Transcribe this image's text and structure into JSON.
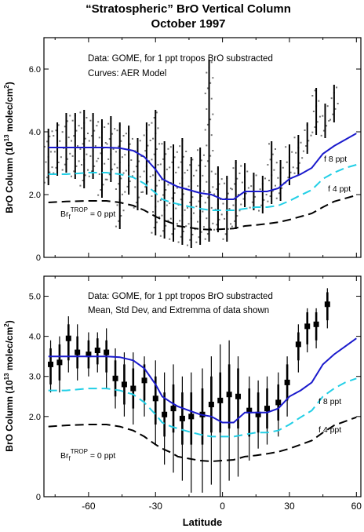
{
  "figure": {
    "title_line1": "“Stratospheric” BrO Vertical Column",
    "title_line2": "October 1997",
    "xlabel": "Latitude"
  },
  "colors": {
    "f8": "#1a1acc",
    "f4": "#22cfe6",
    "f0": "#000000",
    "data": "#000000"
  },
  "chart_data": [
    {
      "type": "scatter",
      "panel": "top",
      "title": "“Stratospheric” BrO Vertical Column October 1997",
      "xlabel": "",
      "ylabel": "BrO Column (10^13 molec/cm^2)",
      "ylabel_main": "BrO Column (10",
      "ylabel_sup": "13",
      "ylabel_tail": " molec/cm",
      "ylabel_sup2": "2",
      "ylabel_end": ")",
      "xlim": [
        -80,
        62
      ],
      "ylim": [
        0,
        7
      ],
      "yticks": [
        0,
        2.0,
        4.0,
        6.0
      ],
      "ytick_labels": [
        "0",
        "2.0",
        "4.0",
        "6.0"
      ],
      "annotations": [
        "Data: GOME, for 1 ppt tropos BrO substracted",
        "Curves: AER Model"
      ],
      "curve_labels": {
        "f8": "f 8 ppt",
        "f4": "f 4 ppt",
        "f0_main": "Br",
        "f0_sub": "f",
        "f0_sup": "TROP",
        "f0_tail": " = 0 ppt"
      },
      "series": [
        {
          "name": "f 8 ppt",
          "style": "solid",
          "x": [
            -78,
            -70,
            -60,
            -52,
            -46,
            -40,
            -35,
            -30,
            -27,
            -23,
            -20,
            -15,
            -10,
            -5,
            0,
            5,
            10,
            15,
            20,
            25,
            30,
            35,
            40,
            45,
            50,
            55,
            60
          ],
          "y": [
            3.5,
            3.5,
            3.5,
            3.5,
            3.48,
            3.4,
            3.2,
            2.8,
            2.5,
            2.35,
            2.25,
            2.15,
            2.05,
            2.0,
            1.85,
            1.85,
            2.1,
            2.1,
            2.1,
            2.2,
            2.5,
            2.65,
            2.85,
            3.3,
            3.55,
            3.75,
            3.95
          ]
        },
        {
          "name": "f 4 ppt",
          "style": "dashed",
          "x": [
            -78,
            -70,
            -60,
            -52,
            -46,
            -40,
            -35,
            -30,
            -27,
            -23,
            -20,
            -15,
            -10,
            -5,
            0,
            5,
            10,
            15,
            20,
            25,
            30,
            35,
            40,
            45,
            50,
            55,
            60
          ],
          "y": [
            2.65,
            2.65,
            2.7,
            2.7,
            2.65,
            2.55,
            2.35,
            2.05,
            1.85,
            1.75,
            1.7,
            1.62,
            1.55,
            1.5,
            1.5,
            1.5,
            1.55,
            1.6,
            1.6,
            1.65,
            1.8,
            1.98,
            2.15,
            2.5,
            2.7,
            2.85,
            2.95
          ]
        },
        {
          "name": "Br_f^TROP = 0 ppt",
          "style": "dashed",
          "x": [
            -78,
            -70,
            -60,
            -52,
            -46,
            -40,
            -35,
            -30,
            -27,
            -23,
            -20,
            -15,
            -10,
            -5,
            0,
            5,
            10,
            15,
            20,
            25,
            30,
            35,
            40,
            45,
            50,
            55,
            60
          ],
          "y": [
            1.75,
            1.78,
            1.8,
            1.8,
            1.75,
            1.65,
            1.5,
            1.3,
            1.2,
            1.1,
            1.0,
            0.95,
            0.9,
            0.88,
            0.9,
            0.92,
            1.0,
            1.03,
            1.07,
            1.12,
            1.2,
            1.3,
            1.4,
            1.6,
            1.78,
            1.88,
            1.98
          ]
        }
      ],
      "data_bars": [
        {
          "x": -78,
          "lo": 2.3,
          "hi": 4.1
        },
        {
          "x": -74,
          "lo": 2.6,
          "hi": 4.3
        },
        {
          "x": -70,
          "lo": 2.7,
          "hi": 4.6
        },
        {
          "x": -66,
          "lo": 2.5,
          "hi": 4.6
        },
        {
          "x": -62,
          "lo": 2.2,
          "hi": 4.7
        },
        {
          "x": -58,
          "lo": 2.5,
          "hi": 4.6
        },
        {
          "x": -54,
          "lo": 1.9,
          "hi": 4.4
        },
        {
          "x": -50,
          "lo": 2.4,
          "hi": 4.5
        },
        {
          "x": -46,
          "lo": 0.9,
          "hi": 4.3
        },
        {
          "x": -42,
          "lo": 2.0,
          "hi": 4.2
        },
        {
          "x": -38,
          "lo": 1.5,
          "hi": 3.8
        },
        {
          "x": -34,
          "lo": 2.0,
          "hi": 4.3
        },
        {
          "x": -30,
          "lo": 0.7,
          "hi": 4.7
        },
        {
          "x": -26,
          "lo": 0.6,
          "hi": 3.7
        },
        {
          "x": -22,
          "lo": 0.5,
          "hi": 3.6
        },
        {
          "x": -18,
          "lo": 0.4,
          "hi": 3.8
        },
        {
          "x": -14,
          "lo": 0.3,
          "hi": 3.2
        },
        {
          "x": -10,
          "lo": 0.4,
          "hi": 3.5
        },
        {
          "x": -6,
          "lo": 0.5,
          "hi": 6.3
        },
        {
          "x": -2,
          "lo": 0.8,
          "hi": 2.9
        },
        {
          "x": 2,
          "lo": 0.5,
          "hi": 2.6
        },
        {
          "x": 6,
          "lo": 0.9,
          "hi": 3.1
        },
        {
          "x": 10,
          "lo": 1.6,
          "hi": 3.0
        },
        {
          "x": 14,
          "lo": 1.5,
          "hi": 2.7
        },
        {
          "x": 18,
          "lo": 1.4,
          "hi": 2.6
        },
        {
          "x": 22,
          "lo": 1.7,
          "hi": 3.7
        },
        {
          "x": 26,
          "lo": 1.8,
          "hi": 3.1
        },
        {
          "x": 30,
          "lo": 2.3,
          "hi": 3.6
        },
        {
          "x": 34,
          "lo": 2.6,
          "hi": 3.9
        },
        {
          "x": 38,
          "lo": 3.3,
          "hi": 4.3
        },
        {
          "x": 42,
          "lo": 3.9,
          "hi": 5.4
        },
        {
          "x": 46,
          "lo": 3.8,
          "hi": 4.9
        },
        {
          "x": 50,
          "lo": 4.3,
          "hi": 5.5
        }
      ]
    },
    {
      "type": "scatter",
      "panel": "bottom",
      "xlabel": "Latitude",
      "ylabel": "BrO Column (10^13 molec/cm^2)",
      "ylabel_main": "BrO Column (10",
      "ylabel_sup": "13",
      "ylabel_tail": " molec/cm",
      "ylabel_sup2": "2",
      "ylabel_end": ")",
      "xlim": [
        -80,
        62
      ],
      "ylim": [
        0,
        5.5
      ],
      "yticks": [
        0,
        2.0,
        3.0,
        4.0,
        5.0
      ],
      "ytick_labels": [
        "0",
        "2.0",
        "3.0",
        "4.0",
        "5.0"
      ],
      "xticks": [
        -60,
        -30,
        0,
        30,
        60
      ],
      "xtick_labels": [
        "-60",
        "-30",
        "0",
        "30",
        "60"
      ],
      "annotations": [
        "Data: GOME, for 1 ppt tropos BrO substracted",
        "Mean, Std Dev, and Extremma of data shown"
      ],
      "curve_labels": {
        "f8": "f 8 ppt",
        "f4": "f 4 ppt",
        "f0_main": "Br",
        "f0_sub": "f",
        "f0_sup": "TROP",
        "f0_tail": " = 0 ppt"
      },
      "series": [
        {
          "name": "f 8 ppt",
          "style": "solid",
          "x": [
            -78,
            -70,
            -60,
            -52,
            -46,
            -40,
            -35,
            -30,
            -27,
            -23,
            -20,
            -15,
            -10,
            -5,
            0,
            5,
            10,
            15,
            20,
            25,
            30,
            35,
            40,
            45,
            50,
            55,
            60
          ],
          "y": [
            3.5,
            3.5,
            3.5,
            3.5,
            3.48,
            3.4,
            3.2,
            2.8,
            2.5,
            2.35,
            2.25,
            2.15,
            2.05,
            2.0,
            1.85,
            1.85,
            2.1,
            2.1,
            2.1,
            2.2,
            2.5,
            2.65,
            2.85,
            3.3,
            3.55,
            3.75,
            3.95
          ]
        },
        {
          "name": "f 4 ppt",
          "style": "dashed",
          "x": [
            -78,
            -70,
            -60,
            -52,
            -46,
            -40,
            -35,
            -30,
            -27,
            -23,
            -20,
            -15,
            -10,
            -5,
            0,
            5,
            10,
            15,
            20,
            25,
            30,
            35,
            40,
            45,
            50,
            55,
            60
          ],
          "y": [
            2.65,
            2.65,
            2.7,
            2.7,
            2.65,
            2.55,
            2.35,
            2.05,
            1.85,
            1.75,
            1.7,
            1.62,
            1.55,
            1.5,
            1.5,
            1.5,
            1.55,
            1.6,
            1.6,
            1.65,
            1.8,
            1.98,
            2.15,
            2.5,
            2.7,
            2.85,
            2.95
          ]
        },
        {
          "name": "Br_f^TROP = 0 ppt",
          "style": "dashed",
          "x": [
            -78,
            -70,
            -60,
            -52,
            -46,
            -40,
            -35,
            -30,
            -27,
            -23,
            -20,
            -15,
            -10,
            -5,
            0,
            5,
            10,
            15,
            20,
            25,
            30,
            35,
            40,
            45,
            50,
            55,
            60
          ],
          "y": [
            1.75,
            1.78,
            1.8,
            1.8,
            1.75,
            1.65,
            1.5,
            1.3,
            1.2,
            1.1,
            1.0,
            0.95,
            0.9,
            0.88,
            0.9,
            0.92,
            1.0,
            1.03,
            1.07,
            1.12,
            1.2,
            1.3,
            1.4,
            1.6,
            1.78,
            1.88,
            1.98
          ]
        }
      ],
      "points": [
        {
          "x": -77,
          "mean": 3.3,
          "sd_lo": 2.8,
          "sd_hi": 3.7,
          "min": 2.6,
          "max": 3.9
        },
        {
          "x": -73,
          "mean": 3.35,
          "sd_lo": 2.9,
          "sd_hi": 3.8,
          "min": 2.6,
          "max": 4.0
        },
        {
          "x": -69,
          "mean": 3.95,
          "sd_lo": 3.4,
          "sd_hi": 4.3,
          "min": 3.1,
          "max": 4.5
        },
        {
          "x": -65,
          "mean": 3.6,
          "sd_lo": 3.2,
          "sd_hi": 4.0,
          "min": 2.9,
          "max": 4.3
        },
        {
          "x": -60,
          "mean": 3.55,
          "sd_lo": 3.2,
          "sd_hi": 3.9,
          "min": 3.0,
          "max": 4.1
        },
        {
          "x": -56,
          "mean": 3.65,
          "sd_lo": 3.3,
          "sd_hi": 3.95,
          "min": 3.1,
          "max": 4.1
        },
        {
          "x": -52,
          "mean": 3.6,
          "sd_lo": 3.1,
          "sd_hi": 3.9,
          "min": 2.7,
          "max": 4.2
        },
        {
          "x": -48,
          "mean": 2.95,
          "sd_lo": 2.5,
          "sd_hi": 3.4,
          "min": 2.2,
          "max": 3.7
        },
        {
          "x": -44,
          "mean": 2.8,
          "sd_lo": 2.3,
          "sd_hi": 3.3,
          "min": 2.0,
          "max": 3.6
        },
        {
          "x": -40,
          "mean": 2.7,
          "sd_lo": 2.2,
          "sd_hi": 3.2,
          "min": 1.8,
          "max": 3.6
        },
        {
          "x": -35,
          "mean": 2.9,
          "sd_lo": 2.4,
          "sd_hi": 3.3,
          "min": 2.0,
          "max": 3.5
        },
        {
          "x": -30,
          "mean": 2.45,
          "sd_lo": 1.8,
          "sd_hi": 3.0,
          "min": 1.3,
          "max": 3.4
        },
        {
          "x": -26,
          "mean": 2.05,
          "sd_lo": 1.5,
          "sd_hi": 2.6,
          "min": 0.8,
          "max": 3.1
        },
        {
          "x": -22,
          "mean": 2.2,
          "sd_lo": 1.6,
          "sd_hi": 2.8,
          "min": 0.6,
          "max": 3.3
        },
        {
          "x": -18,
          "mean": 1.95,
          "sd_lo": 1.3,
          "sd_hi": 2.6,
          "min": 0.4,
          "max": 3.0
        },
        {
          "x": -14,
          "mean": 2.0,
          "sd_lo": 1.3,
          "sd_hi": 2.6,
          "min": 0.1,
          "max": 3.1
        },
        {
          "x": -9,
          "mean": 2.05,
          "sd_lo": 1.3,
          "sd_hi": 2.7,
          "min": 0.1,
          "max": 3.2
        },
        {
          "x": -5,
          "mean": 2.3,
          "sd_lo": 1.6,
          "sd_hi": 3.0,
          "min": 0.3,
          "max": 3.5
        },
        {
          "x": -1,
          "mean": 2.4,
          "sd_lo": 1.6,
          "sd_hi": 3.1,
          "min": 0.0,
          "max": 3.8
        },
        {
          "x": 3,
          "mean": 2.55,
          "sd_lo": 1.7,
          "sd_hi": 3.3,
          "min": 0.4,
          "max": 3.9
        },
        {
          "x": 7,
          "mean": 2.5,
          "sd_lo": 1.7,
          "sd_hi": 3.2,
          "min": 0.5,
          "max": 3.5
        },
        {
          "x": 12,
          "mean": 2.15,
          "sd_lo": 1.5,
          "sd_hi": 2.7,
          "min": 0.9,
          "max": 3.0
        },
        {
          "x": 16,
          "mean": 2.05,
          "sd_lo": 1.6,
          "sd_hi": 2.6,
          "min": 1.2,
          "max": 2.9
        },
        {
          "x": 20,
          "mean": 2.2,
          "sd_lo": 1.7,
          "sd_hi": 2.7,
          "min": 1.3,
          "max": 3.0
        },
        {
          "x": 25,
          "mean": 2.35,
          "sd_lo": 1.9,
          "sd_hi": 2.8,
          "min": 1.5,
          "max": 3.1
        },
        {
          "x": 29,
          "mean": 2.85,
          "sd_lo": 2.4,
          "sd_hi": 3.3,
          "min": 2.0,
          "max": 3.5
        },
        {
          "x": 34,
          "mean": 3.8,
          "sd_lo": 3.4,
          "sd_hi": 4.1,
          "min": 3.1,
          "max": 4.3
        },
        {
          "x": 38,
          "mean": 4.25,
          "sd_lo": 3.8,
          "sd_hi": 4.6,
          "min": 3.6,
          "max": 4.7
        },
        {
          "x": 42,
          "mean": 4.3,
          "sd_lo": 3.9,
          "sd_hi": 4.6,
          "min": 3.7,
          "max": 4.7
        },
        {
          "x": 47,
          "mean": 4.8,
          "sd_lo": 4.4,
          "sd_hi": 5.1,
          "min": 4.2,
          "max": 5.2
        }
      ]
    }
  ]
}
